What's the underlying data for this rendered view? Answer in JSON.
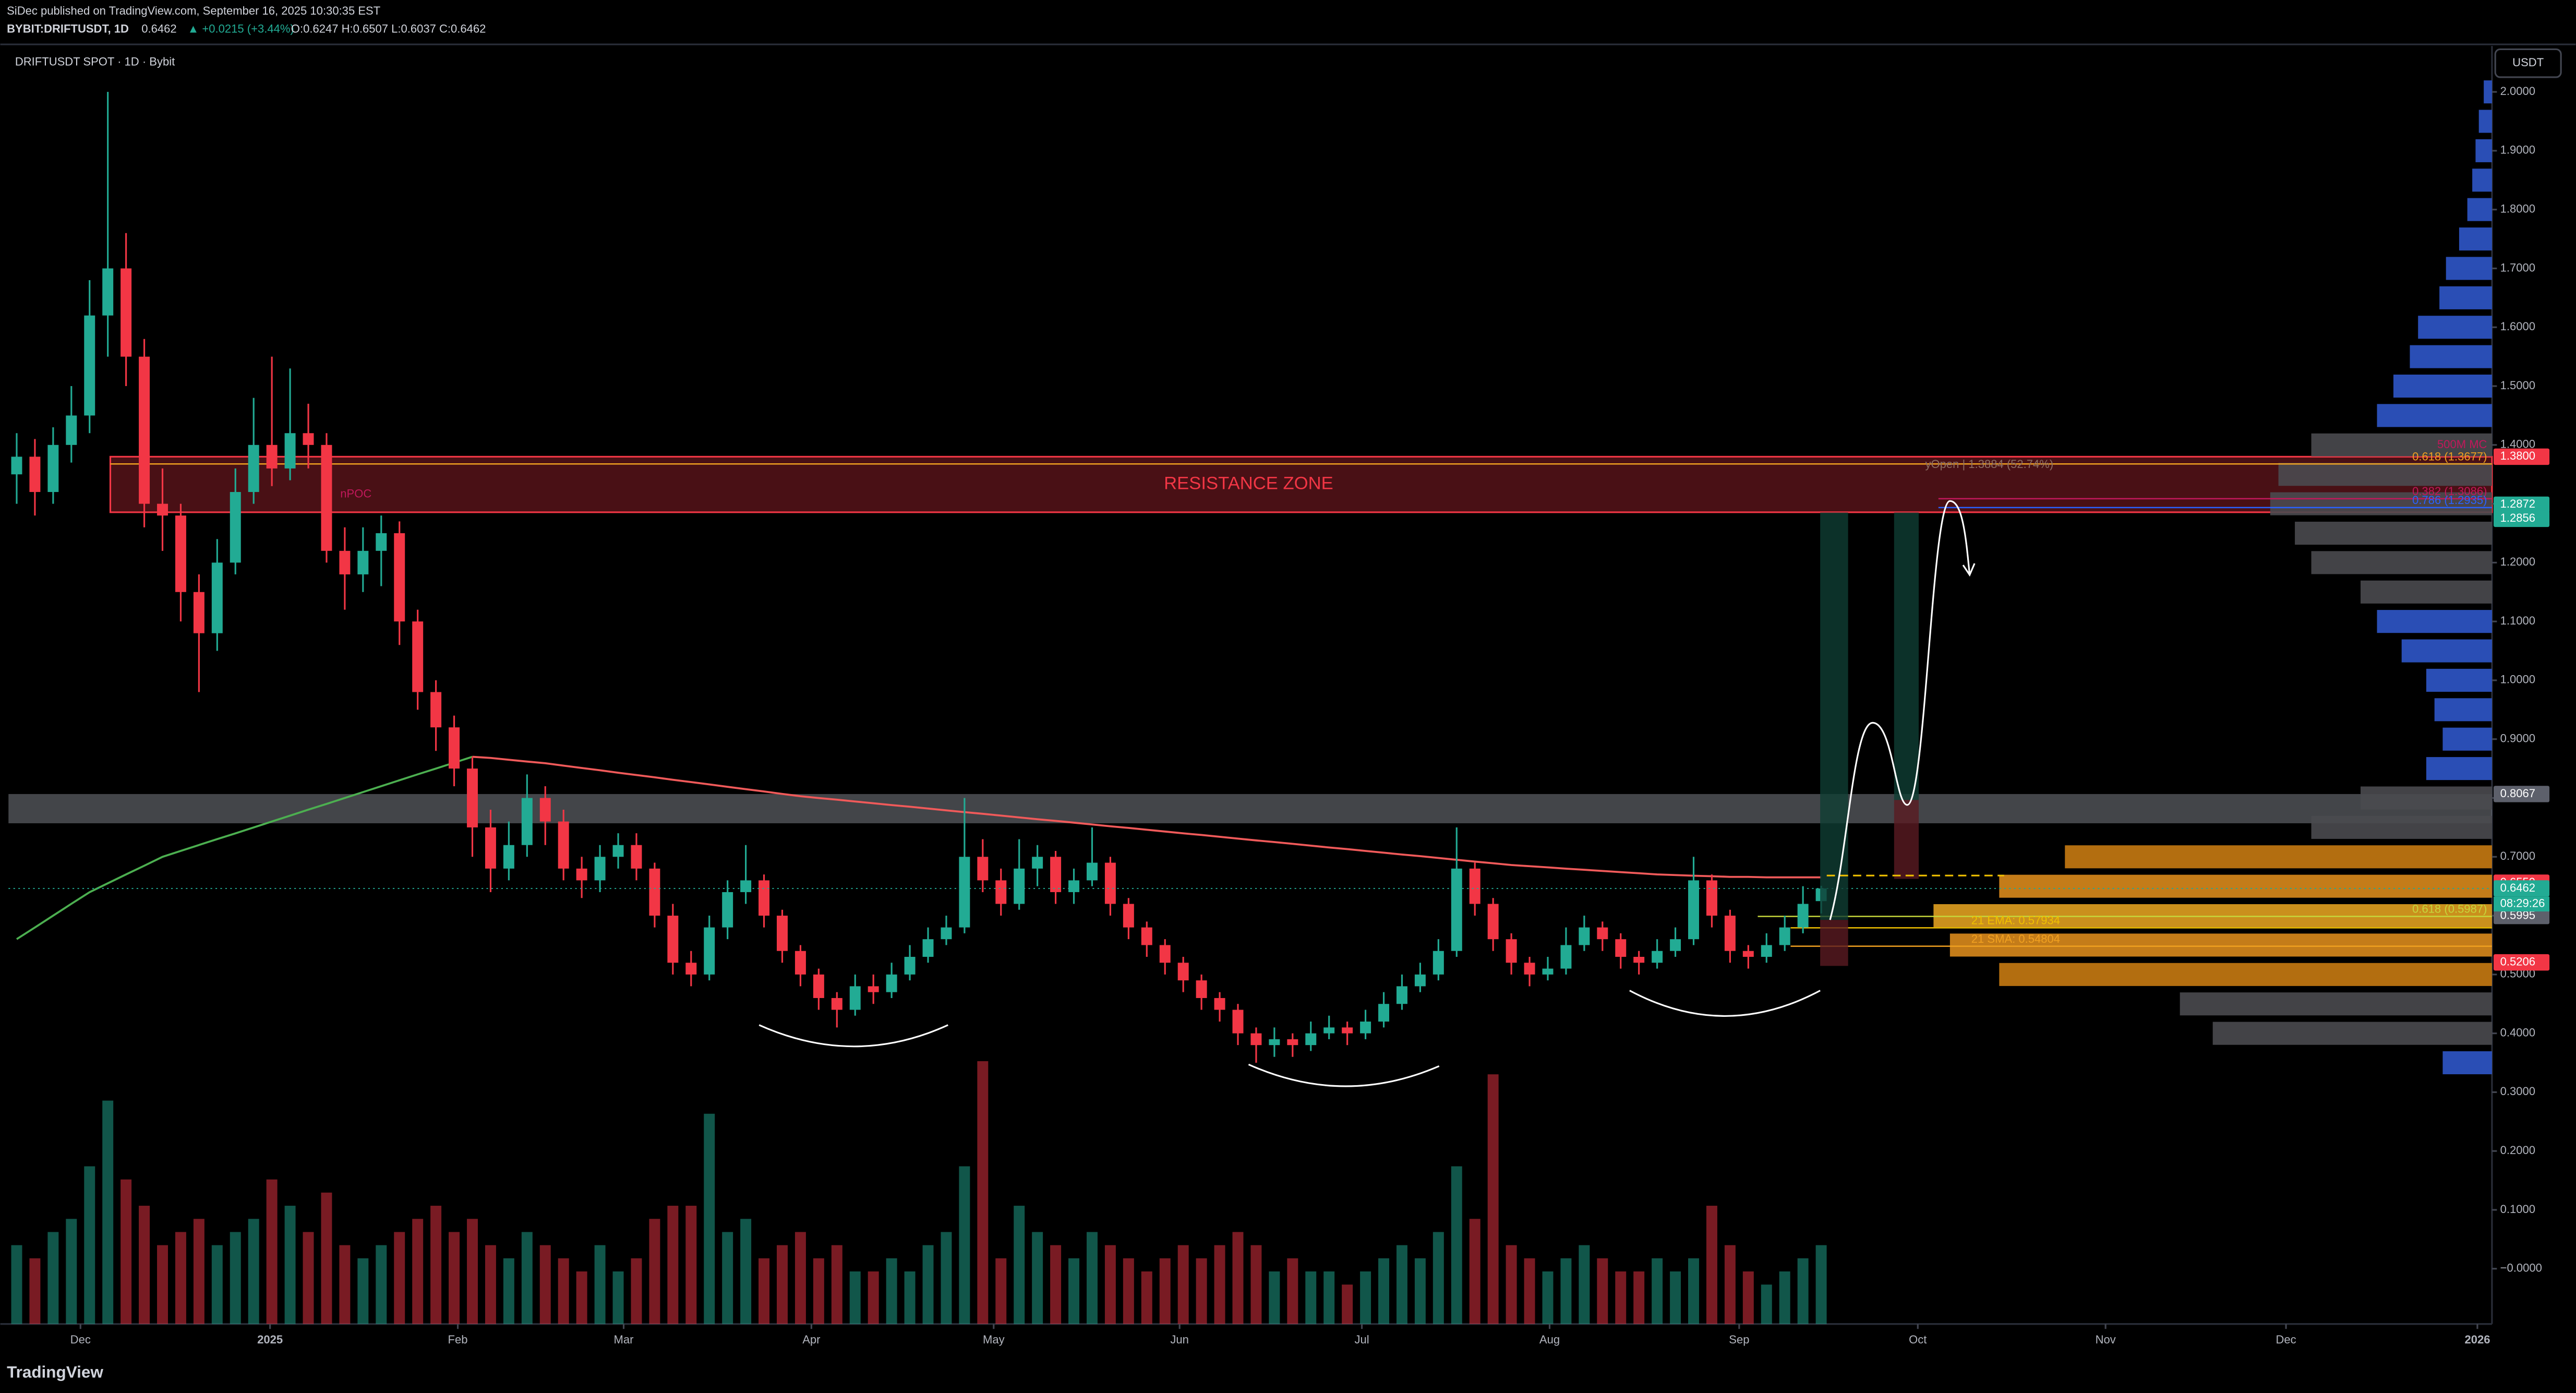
{
  "header": {
    "byline": "SiDec published on TradingView.com, September 16, 2025 10:30:35 EST",
    "symbol": "BYBIT:DRIFTUSDT, 1D",
    "last": "0.6462",
    "change": "▲ +0.0215 (+3.44%)",
    "ohlc": "O:0.6247 H:0.6507 L:0.6037 C:0.6462",
    "brand": "TradingView"
  },
  "chart_data": {
    "type": "candlestick",
    "title": "DRIFTUSDT SPOT · 1D · Bybit",
    "unit": "USDT",
    "up_color": "#22ab94",
    "down_color": "#f23645",
    "candles": [
      [
        1.35,
        1.42,
        1.3,
        1.38
      ],
      [
        1.38,
        1.41,
        1.28,
        1.32
      ],
      [
        1.32,
        1.43,
        1.3,
        1.4
      ],
      [
        1.4,
        1.5,
        1.37,
        1.45
      ],
      [
        1.45,
        1.68,
        1.42,
        1.62
      ],
      [
        1.62,
        2.0,
        1.55,
        1.7
      ],
      [
        1.7,
        1.76,
        1.5,
        1.55
      ],
      [
        1.55,
        1.58,
        1.26,
        1.3
      ],
      [
        1.3,
        1.36,
        1.22,
        1.28
      ],
      [
        1.28,
        1.3,
        1.1,
        1.15
      ],
      [
        1.15,
        1.18,
        0.98,
        1.08
      ],
      [
        1.08,
        1.24,
        1.05,
        1.2
      ],
      [
        1.2,
        1.36,
        1.18,
        1.32
      ],
      [
        1.32,
        1.48,
        1.3,
        1.4
      ],
      [
        1.4,
        1.55,
        1.33,
        1.36
      ],
      [
        1.36,
        1.53,
        1.34,
        1.42
      ],
      [
        1.42,
        1.47,
        1.36,
        1.4
      ],
      [
        1.4,
        1.42,
        1.2,
        1.22
      ],
      [
        1.22,
        1.26,
        1.12,
        1.18
      ],
      [
        1.18,
        1.26,
        1.15,
        1.22
      ],
      [
        1.22,
        1.28,
        1.16,
        1.25
      ],
      [
        1.25,
        1.27,
        1.06,
        1.1
      ],
      [
        1.1,
        1.12,
        0.95,
        0.98
      ],
      [
        0.98,
        1.0,
        0.88,
        0.92
      ],
      [
        0.92,
        0.94,
        0.82,
        0.85
      ],
      [
        0.85,
        0.87,
        0.7,
        0.75
      ],
      [
        0.75,
        0.78,
        0.64,
        0.68
      ],
      [
        0.68,
        0.76,
        0.66,
        0.72
      ],
      [
        0.72,
        0.84,
        0.7,
        0.8
      ],
      [
        0.8,
        0.82,
        0.72,
        0.76
      ],
      [
        0.76,
        0.78,
        0.66,
        0.68
      ],
      [
        0.68,
        0.7,
        0.63,
        0.66
      ],
      [
        0.66,
        0.72,
        0.64,
        0.7
      ],
      [
        0.7,
        0.74,
        0.68,
        0.72
      ],
      [
        0.72,
        0.74,
        0.66,
        0.68
      ],
      [
        0.68,
        0.69,
        0.58,
        0.6
      ],
      [
        0.6,
        0.62,
        0.5,
        0.52
      ],
      [
        0.52,
        0.54,
        0.48,
        0.5
      ],
      [
        0.5,
        0.6,
        0.49,
        0.58
      ],
      [
        0.58,
        0.66,
        0.56,
        0.64
      ],
      [
        0.64,
        0.72,
        0.62,
        0.66
      ],
      [
        0.66,
        0.67,
        0.58,
        0.6
      ],
      [
        0.6,
        0.61,
        0.52,
        0.54
      ],
      [
        0.54,
        0.55,
        0.48,
        0.5
      ],
      [
        0.5,
        0.51,
        0.44,
        0.46
      ],
      [
        0.46,
        0.47,
        0.41,
        0.44
      ],
      [
        0.44,
        0.5,
        0.43,
        0.48
      ],
      [
        0.48,
        0.5,
        0.45,
        0.47
      ],
      [
        0.47,
        0.52,
        0.46,
        0.5
      ],
      [
        0.5,
        0.55,
        0.49,
        0.53
      ],
      [
        0.53,
        0.58,
        0.52,
        0.56
      ],
      [
        0.56,
        0.6,
        0.55,
        0.58
      ],
      [
        0.58,
        0.8,
        0.57,
        0.7
      ],
      [
        0.7,
        0.73,
        0.64,
        0.66
      ],
      [
        0.66,
        0.68,
        0.6,
        0.62
      ],
      [
        0.62,
        0.73,
        0.61,
        0.68
      ],
      [
        0.68,
        0.72,
        0.65,
        0.7
      ],
      [
        0.7,
        0.71,
        0.62,
        0.64
      ],
      [
        0.64,
        0.68,
        0.62,
        0.66
      ],
      [
        0.66,
        0.75,
        0.65,
        0.69
      ],
      [
        0.69,
        0.7,
        0.6,
        0.62
      ],
      [
        0.62,
        0.63,
        0.56,
        0.58
      ],
      [
        0.58,
        0.59,
        0.53,
        0.55
      ],
      [
        0.55,
        0.56,
        0.5,
        0.52
      ],
      [
        0.52,
        0.53,
        0.47,
        0.49
      ],
      [
        0.49,
        0.5,
        0.44,
        0.46
      ],
      [
        0.46,
        0.47,
        0.42,
        0.44
      ],
      [
        0.44,
        0.45,
        0.38,
        0.4
      ],
      [
        0.4,
        0.41,
        0.35,
        0.38
      ],
      [
        0.38,
        0.41,
        0.36,
        0.39
      ],
      [
        0.39,
        0.4,
        0.36,
        0.38
      ],
      [
        0.38,
        0.42,
        0.37,
        0.4
      ],
      [
        0.4,
        0.43,
        0.39,
        0.41
      ],
      [
        0.41,
        0.42,
        0.38,
        0.4
      ],
      [
        0.4,
        0.44,
        0.39,
        0.42
      ],
      [
        0.42,
        0.47,
        0.41,
        0.45
      ],
      [
        0.45,
        0.5,
        0.44,
        0.48
      ],
      [
        0.48,
        0.52,
        0.47,
        0.5
      ],
      [
        0.5,
        0.56,
        0.49,
        0.54
      ],
      [
        0.54,
        0.75,
        0.53,
        0.68
      ],
      [
        0.68,
        0.69,
        0.6,
        0.62
      ],
      [
        0.62,
        0.63,
        0.54,
        0.56
      ],
      [
        0.56,
        0.57,
        0.5,
        0.52
      ],
      [
        0.52,
        0.53,
        0.48,
        0.5
      ],
      [
        0.5,
        0.53,
        0.49,
        0.51
      ],
      [
        0.51,
        0.58,
        0.5,
        0.55
      ],
      [
        0.55,
        0.6,
        0.54,
        0.58
      ],
      [
        0.58,
        0.59,
        0.54,
        0.56
      ],
      [
        0.56,
        0.57,
        0.51,
        0.53
      ],
      [
        0.53,
        0.54,
        0.5,
        0.52
      ],
      [
        0.52,
        0.56,
        0.51,
        0.54
      ],
      [
        0.54,
        0.58,
        0.53,
        0.56
      ],
      [
        0.56,
        0.7,
        0.55,
        0.66
      ],
      [
        0.66,
        0.67,
        0.58,
        0.6
      ],
      [
        0.6,
        0.61,
        0.52,
        0.54
      ],
      [
        0.54,
        0.55,
        0.51,
        0.53
      ],
      [
        0.53,
        0.57,
        0.52,
        0.55
      ],
      [
        0.55,
        0.6,
        0.54,
        0.58
      ],
      [
        0.58,
        0.65,
        0.57,
        0.62
      ],
      [
        0.6247,
        0.6507,
        0.6037,
        0.6462
      ]
    ],
    "volume": [
      30,
      25,
      35,
      40,
      60,
      85,
      55,
      45,
      30,
      35,
      40,
      30,
      35,
      40,
      55,
      45,
      35,
      50,
      30,
      25,
      30,
      35,
      40,
      45,
      35,
      40,
      30,
      25,
      35,
      30,
      25,
      20,
      30,
      20,
      25,
      40,
      45,
      45,
      80,
      35,
      40,
      25,
      30,
      35,
      25,
      30,
      20,
      20,
      25,
      20,
      30,
      35,
      60,
      100,
      25,
      45,
      35,
      30,
      25,
      35,
      30,
      25,
      20,
      25,
      30,
      25,
      30,
      35,
      30,
      20,
      25,
      20,
      20,
      15,
      20,
      25,
      30,
      25,
      35,
      60,
      40,
      95,
      30,
      25,
      20,
      25,
      30,
      25,
      20,
      20,
      25,
      20,
      25,
      45,
      30,
      20,
      15,
      20,
      25,
      30
    ],
    "overlays": [
      {
        "color": "#f05a5a",
        "values": [
          null,
          null,
          null,
          null,
          null,
          null,
          null,
          null,
          null,
          null,
          null,
          null,
          null,
          null,
          null,
          null,
          null,
          null,
          null,
          null,
          null,
          null,
          null,
          null,
          null,
          0.87,
          0.868,
          0.865,
          0.862,
          0.859,
          0.855,
          0.851,
          0.847,
          0.843,
          0.839,
          0.835,
          0.831,
          0.827,
          0.823,
          0.819,
          0.815,
          0.811,
          0.807,
          0.803,
          0.8,
          0.797,
          0.794,
          0.791,
          0.788,
          0.785,
          0.782,
          0.779,
          0.776,
          0.773,
          0.77,
          0.767,
          0.764,
          0.761,
          0.758,
          0.755,
          0.752,
          0.749,
          0.746,
          0.743,
          0.74,
          0.737,
          0.734,
          0.731,
          0.728,
          0.725,
          0.722,
          0.719,
          0.716,
          0.713,
          0.71,
          0.707,
          0.704,
          0.701,
          0.698,
          0.695,
          0.692,
          0.689,
          0.686,
          0.684,
          0.682,
          0.68,
          0.678,
          0.676,
          0.674,
          0.672,
          0.67,
          0.669,
          0.668,
          0.667,
          0.666,
          0.666,
          0.665,
          0.665,
          0.665,
          0.665
        ]
      },
      {
        "color": "#4caf50",
        "values": [
          0.56,
          0.58,
          0.6,
          0.62,
          0.64,
          0.655,
          0.67,
          0.685,
          0.7,
          0.71,
          0.72,
          0.73,
          0.74,
          0.75,
          0.76,
          0.77,
          0.78,
          0.79,
          0.8,
          0.81,
          0.82,
          0.83,
          0.84,
          0.85,
          0.86,
          0.87,
          null,
          null,
          null,
          null,
          null,
          null,
          null,
          null,
          null,
          null,
          null,
          null,
          null,
          null,
          null,
          null,
          null,
          null,
          null,
          null,
          null,
          null,
          null,
          null,
          null,
          null,
          null,
          null,
          null,
          null,
          null,
          null,
          null,
          null,
          null,
          null,
          null,
          null,
          null,
          null,
          null,
          null,
          null,
          null,
          null,
          null,
          null,
          null,
          null,
          null,
          null,
          null,
          null,
          null,
          null,
          null,
          null,
          null,
          null,
          null,
          null,
          null,
          null,
          null,
          null,
          null,
          null,
          null,
          null,
          null,
          null,
          null,
          null,
          null
        ]
      }
    ],
    "zones": [
      {
        "from": 1.2856,
        "to": 1.38,
        "color": "#f23645",
        "label": "RESISTANCE ZONE"
      },
      {
        "from": 0.757,
        "to": 0.8067,
        "color": "#9598a1"
      }
    ],
    "levels": [
      {
        "value": 1.3677,
        "label": "0.618 (1.3677)",
        "color": "#f0a020"
      },
      {
        "value": 1.3086,
        "label": "0.382 (1.3086)",
        "color": "#c2185b"
      },
      {
        "value": 1.2935,
        "label": "0.786 (1.2935)",
        "color": "#2962ff"
      },
      {
        "value": 0.5987,
        "label": "0.618 (0.5987)",
        "color": "#c6d63b"
      },
      {
        "value": 0.57934,
        "label": "21 EMA: 0.57934",
        "color": "#f0c000"
      },
      {
        "value": 0.54804,
        "label": "21 SMA: 0.54804",
        "color": "#f0a020"
      }
    ],
    "notes": [
      "nPOC",
      "500M MC",
      "yOpen | 1.3884 (52.74%)"
    ],
    "price_labels": [
      {
        "value": 1.38,
        "label": "1.3800",
        "color": "#f23645"
      },
      {
        "value": 1.2872,
        "label": "1.2872",
        "color": "#22ab94"
      },
      {
        "value": 1.2856,
        "label": "1.2856",
        "color": "#22ab94"
      },
      {
        "value": 0.8067,
        "label": "0.8067",
        "color": "#5d606b"
      },
      {
        "value": 0.6559,
        "label": "0.6559",
        "color": "#f23645"
      },
      {
        "value": 0.6462,
        "label": "0.6462",
        "color": "#22ab94"
      },
      {
        "value": 0.5995,
        "label": "0.5995",
        "color": "#5d606b"
      },
      {
        "value": 0.5206,
        "label": "0.5206",
        "color": "#f23645"
      }
    ],
    "countdown": "08:29:26",
    "ylim": [
      -0.094,
      2.078
    ],
    "yticks": [
      {
        "value": 2,
        "label": "2.0000"
      },
      {
        "value": 1.9,
        "label": "1.9000"
      },
      {
        "value": 1.8,
        "label": "1.8000"
      },
      {
        "value": 1.7,
        "label": "1.7000"
      },
      {
        "value": 1.6,
        "label": "1.6000"
      },
      {
        "value": 1.5,
        "label": "1.5000"
      },
      {
        "value": 1.4,
        "label": "1.4000"
      },
      {
        "value": 1.3,
        "label": "1.3000"
      },
      {
        "value": 1.2,
        "label": "1.2000"
      },
      {
        "value": 1.1,
        "label": "1.1000"
      },
      {
        "value": 1,
        "label": "1.0000"
      },
      {
        "value": 0.9,
        "label": "0.9000"
      },
      {
        "value": 0.8,
        "label": "0.8000"
      },
      {
        "value": 0.7,
        "label": "0.7000"
      },
      {
        "value": 0.6,
        "label": "0.6000"
      },
      {
        "value": 0.5,
        "label": "0.5000"
      },
      {
        "value": 0.4,
        "label": "0.4000"
      },
      {
        "value": 0.3,
        "label": "0.3000"
      },
      {
        "value": 0.2,
        "label": "0.2000"
      },
      {
        "value": 0.1,
        "label": "0.1000"
      },
      {
        "value": 0,
        "label": "−0.0000"
      }
    ],
    "xlim": [
      -0.45,
      135.8
    ],
    "xticks": [
      {
        "value": 3.5,
        "label": "Dec"
      },
      {
        "value": 13.9,
        "label": "2025"
      },
      {
        "value": 24.2,
        "label": "Feb"
      },
      {
        "value": 33.3,
        "label": "Mar"
      },
      {
        "value": 43.6,
        "label": "Apr"
      },
      {
        "value": 53.6,
        "label": "May"
      },
      {
        "value": 63.8,
        "label": "Jun"
      },
      {
        "value": 73.8,
        "label": "Jul"
      },
      {
        "value": 84.1,
        "label": "Aug"
      },
      {
        "value": 94.5,
        "label": "Sep"
      },
      {
        "value": 104.3,
        "label": "Oct"
      },
      {
        "value": 114.6,
        "label": "Nov"
      },
      {
        "value": 124.5,
        "label": "Dec"
      },
      {
        "value": 135,
        "label": "2026"
      }
    ],
    "volume_profile": {
      "levels": [
        2.0,
        1.95,
        1.9,
        1.85,
        1.8,
        1.75,
        1.7,
        1.65,
        1.6,
        1.55,
        1.5,
        1.45,
        1.4,
        1.35,
        1.3,
        1.25,
        1.2,
        1.15,
        1.1,
        1.05,
        1.0,
        0.95,
        0.9,
        0.85,
        0.8,
        0.75,
        0.7,
        0.65,
        0.6,
        0.55,
        0.5,
        0.45,
        0.4,
        0.35
      ],
      "values": [
        5,
        8,
        10,
        12,
        15,
        20,
        28,
        32,
        45,
        50,
        60,
        70,
        110,
        130,
        135,
        120,
        110,
        80,
        70,
        55,
        40,
        35,
        30,
        40,
        80,
        110,
        260,
        300,
        340,
        330,
        300,
        190,
        170,
        30
      ],
      "colors": [
        "#2f56c9",
        "#2f56c9",
        "#2f56c9",
        "#2f56c9",
        "#2f56c9",
        "#2f56c9",
        "#2f56c9",
        "#2f56c9",
        "#2f56c9",
        "#2f56c9",
        "#2f56c9",
        "#2f56c9",
        "#4a4a4f",
        "#4a4a4f",
        "#4a4a4f",
        "#4a4a4f",
        "#4a4a4f",
        "#4a4a4f",
        "#2f56c9",
        "#2f56c9",
        "#2f56c9",
        "#2f56c9",
        "#2f56c9",
        "#2f56c9",
        "#4a4a4f",
        "#4a4a4f",
        "#c77a12",
        "#d98a1c",
        "#e0a020",
        "#d98a1c",
        "#c77a12",
        "#4a4a4f",
        "#4a4a4f",
        "#2f56c9"
      ]
    }
  }
}
